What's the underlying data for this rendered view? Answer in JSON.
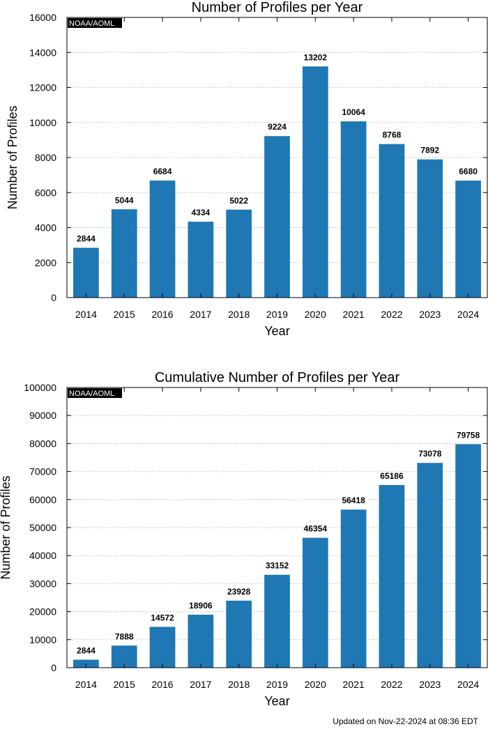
{
  "chart_data": [
    {
      "type": "bar",
      "title": "Number of Profiles per Year",
      "xlabel": "Year",
      "ylabel": "Number of Profiles",
      "categories": [
        "2014",
        "2015",
        "2016",
        "2017",
        "2018",
        "2019",
        "2020",
        "2021",
        "2022",
        "2023",
        "2024"
      ],
      "values": [
        2844,
        5044,
        6684,
        4334,
        5022,
        9224,
        13202,
        10064,
        8768,
        7892,
        6680
      ],
      "ylim": [
        0,
        16000
      ],
      "yticks": [
        0,
        2000,
        4000,
        6000,
        8000,
        10000,
        12000,
        14000,
        16000
      ],
      "grid": true,
      "bar_color": "#1f77b4",
      "watermark": "NOAA/AOML"
    },
    {
      "type": "bar",
      "title": "Cumulative Number of Profiles per Year",
      "xlabel": "Year",
      "ylabel": "Number of Profiles",
      "categories": [
        "2014",
        "2015",
        "2016",
        "2017",
        "2018",
        "2019",
        "2020",
        "2021",
        "2022",
        "2023",
        "2024"
      ],
      "values": [
        2844,
        7888,
        14572,
        18906,
        23928,
        33152,
        46354,
        56418,
        65186,
        73078,
        79758
      ],
      "ylim": [
        0,
        100000
      ],
      "yticks": [
        0,
        10000,
        20000,
        30000,
        40000,
        50000,
        60000,
        70000,
        80000,
        90000,
        100000
      ],
      "grid": true,
      "bar_color": "#1f77b4",
      "watermark": "NOAA/AOML"
    }
  ],
  "footer": "Updated on Nov-22-2024 at 08:36 EDT"
}
